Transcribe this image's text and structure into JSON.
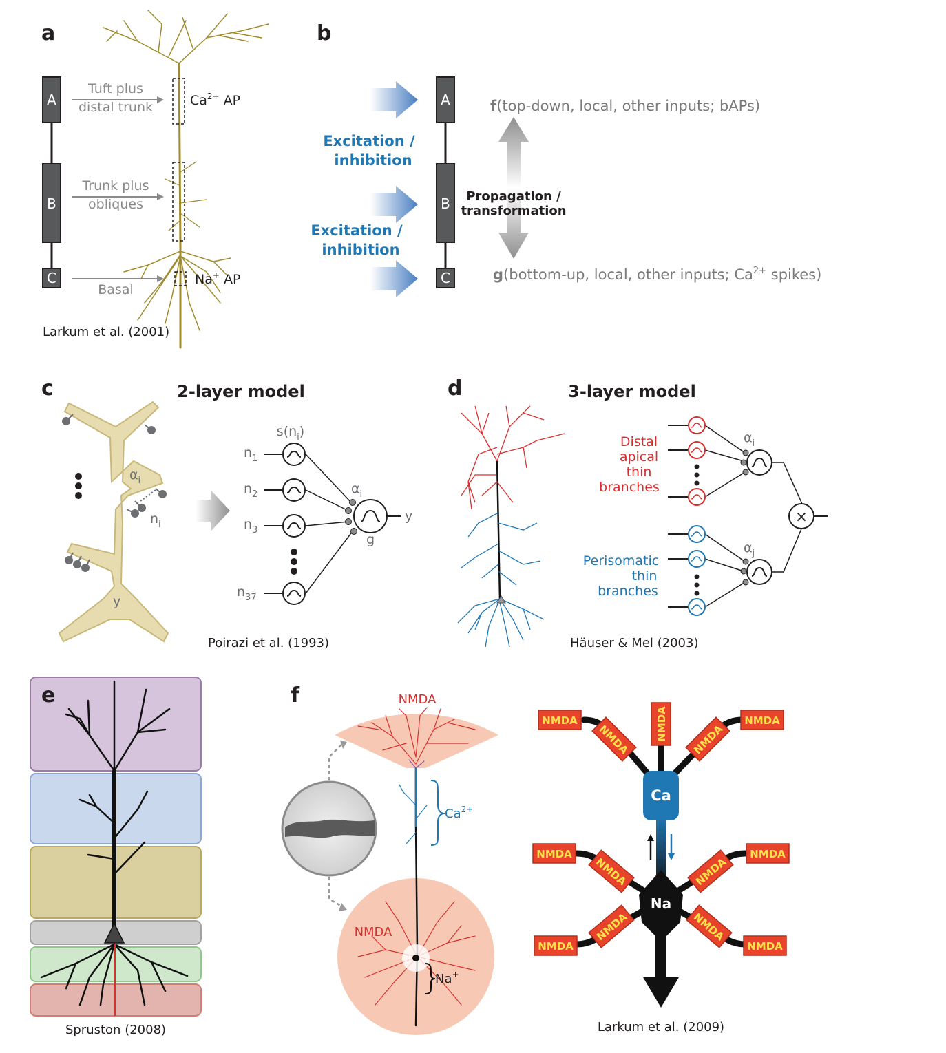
{
  "panels": {
    "a": {
      "label": "a",
      "compartments": [
        "A",
        "B",
        "C"
      ],
      "inputs": [
        {
          "line1": "Tuft plus",
          "line2": "distal trunk"
        },
        {
          "line1": "Trunk plus",
          "line2": "obliques"
        },
        {
          "line1": "Basal"
        }
      ],
      "spike_ca_main": "Ca",
      "spike_ca_sup": "2+",
      "spike_ca_suffix": " AP",
      "spike_na_main": "Na",
      "spike_na_sup": "+",
      "spike_na_suffix": " AP",
      "citation": "Larkum et al. (2001)"
    },
    "b": {
      "label": "b",
      "compartments": [
        "A",
        "B",
        "C"
      ],
      "excitation_line1": "Excitation /",
      "excitation_line2": "inhibition",
      "propagation_line1": "Propagation /",
      "propagation_line2": "transformation",
      "f_symbol": "f",
      "f_text": "(top-down, local, other inputs; bAPs)",
      "g_symbol": "g",
      "g_text": "(bottom-up, local, other inputs; Ca",
      "g_sup": "2+",
      "g_suffix": " spikes)"
    },
    "c": {
      "label": "c",
      "title": "2-layer model",
      "alpha_i": "α",
      "alpha_sub": "i",
      "n_i": "n",
      "n_i_sub": "i",
      "y": "y",
      "s_label": "s(n",
      "s_sub": "i",
      "s_close": ")",
      "inputs": [
        {
          "name": "n",
          "sub": "1"
        },
        {
          "name": "n",
          "sub": "2"
        },
        {
          "name": "n",
          "sub": "3"
        },
        {
          "name": "n",
          "sub": "37"
        }
      ],
      "out_alpha": "α",
      "out_alpha_sub": "i",
      "g": "g",
      "output": "y",
      "citation": "Poirazi et al. (1993)"
    },
    "d": {
      "label": "d",
      "title": "3-layer model",
      "distal_lines": [
        "Distal",
        "apical",
        "thin",
        "branches"
      ],
      "perisomatic_lines": [
        "Perisomatic",
        "thin",
        "branches"
      ],
      "alpha_i": "α",
      "alpha_i_sub": "i",
      "alpha_j": "α",
      "alpha_j_sub": "j",
      "multiply": "×",
      "citation": "Häuser & Mel (2003)"
    },
    "e": {
      "label": "e",
      "citation": "Spruston (2008)"
    },
    "f": {
      "label": "f",
      "nmda_top": "NMDA",
      "nmda_bottom": "NMDA",
      "ca_main": "Ca",
      "ca_sup": "2+",
      "na_main": "Na",
      "na_sup": "+",
      "ca_compartment": "Ca",
      "na_compartment": "Na",
      "nmda_label": "NMDA",
      "citation": "Larkum et al. (2009)"
    }
  },
  "colors": {
    "box_gray": "#58595b",
    "neuron_gold": "#a08c2e",
    "blue": "#1f78b4",
    "red": "#d7302e",
    "nmda_fill": "#e8442b",
    "nmda_text": "#ffe14a",
    "band_purple": "#d6c4dc",
    "band_blue": "#c9d8ec",
    "band_tan": "#dacf9e",
    "band_gray": "#cfcfcf",
    "band_green": "#cfe8cc",
    "band_red": "#e3b3ad"
  }
}
